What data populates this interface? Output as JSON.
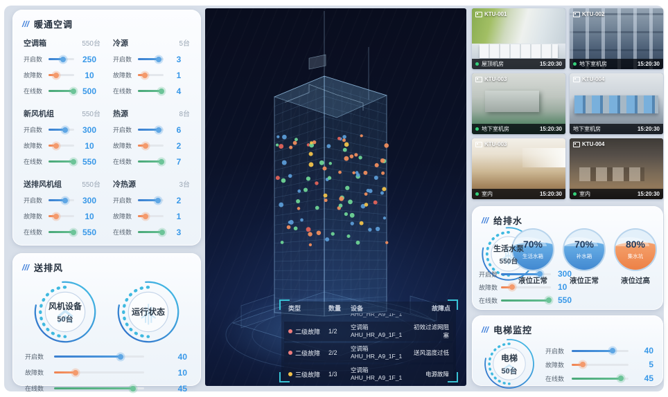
{
  "colors": {
    "accent_blue": "#3898e8",
    "accent_orange": "#f08a5c",
    "accent_green": "#5fb98a",
    "bracket_cyan": "#38c3d4",
    "online_green": "#35d07a",
    "ring_blue": "#2f6cc9",
    "ring_cyan": "#46c0e6"
  },
  "hvac": {
    "title": "暖通空调",
    "groups": [
      {
        "name": "空调箱",
        "total": "550台",
        "metrics": [
          {
            "label": "开启数",
            "value": "250",
            "pct": 58,
            "color": "blue"
          },
          {
            "label": "故障数",
            "value": "10",
            "pct": 30,
            "color": "orange"
          },
          {
            "label": "在线数",
            "value": "500",
            "pct": 96,
            "color": "green"
          }
        ]
      },
      {
        "name": "冷源",
        "total": "5台",
        "metrics": [
          {
            "label": "开启数",
            "value": "3",
            "pct": 80,
            "color": "blue"
          },
          {
            "label": "故障数",
            "value": "1",
            "pct": 28,
            "color": "orange"
          },
          {
            "label": "在线数",
            "value": "4",
            "pct": 92,
            "color": "green"
          }
        ]
      },
      {
        "name": "新风机组",
        "total": "550台",
        "metrics": [
          {
            "label": "开启数",
            "value": "300",
            "pct": 64,
            "color": "blue"
          },
          {
            "label": "故障数",
            "value": "10",
            "pct": 30,
            "color": "orange"
          },
          {
            "label": "在线数",
            "value": "550",
            "pct": 96,
            "color": "green"
          }
        ]
      },
      {
        "name": "热源",
        "total": "8台",
        "metrics": [
          {
            "label": "开启数",
            "value": "6",
            "pct": 80,
            "color": "blue"
          },
          {
            "label": "故障数",
            "value": "2",
            "pct": 30,
            "color": "orange"
          },
          {
            "label": "在线数",
            "value": "7",
            "pct": 92,
            "color": "green"
          }
        ]
      },
      {
        "name": "送排风机组",
        "total": "550台",
        "metrics": [
          {
            "label": "开启数",
            "value": "300",
            "pct": 64,
            "color": "blue"
          },
          {
            "label": "故障数",
            "value": "10",
            "pct": 30,
            "color": "orange"
          },
          {
            "label": "在线数",
            "value": "550",
            "pct": 96,
            "color": "green"
          }
        ]
      },
      {
        "name": "冷热源",
        "total": "3台",
        "metrics": [
          {
            "label": "开启数",
            "value": "2",
            "pct": 78,
            "color": "blue"
          },
          {
            "label": "故障数",
            "value": "1",
            "pct": 30,
            "color": "orange"
          },
          {
            "label": "在线数",
            "value": "3",
            "pct": 94,
            "color": "green"
          }
        ]
      }
    ]
  },
  "fan": {
    "title": "送排风",
    "gauges": [
      {
        "line1": "风机设备",
        "line2": "50台"
      },
      {
        "line1": "运行状态",
        "line2": ""
      }
    ],
    "metrics": [
      {
        "label": "开启数",
        "value": "40",
        "pct": 74,
        "color": "blue"
      },
      {
        "label": "故障数",
        "value": "10",
        "pct": 24,
        "color": "orange"
      },
      {
        "label": "在线数",
        "value": "45",
        "pct": 88,
        "color": "green"
      }
    ]
  },
  "cameras": {
    "tiles": [
      {
        "id": "KTU-001",
        "location": "屋顶机房",
        "time": "15:20:30",
        "online": true,
        "scene": "rooftop"
      },
      {
        "id": "KTU-002",
        "location": "地下室机房",
        "time": "15:20:30",
        "online": true,
        "scene": "pumps"
      },
      {
        "id": "KTU-003",
        "location": "地下室机房",
        "time": "15:20:30",
        "online": true,
        "scene": "plant"
      },
      {
        "id": "KTU-004",
        "location": "地下室机房",
        "time": "15:20:30",
        "online": false,
        "scene": "compressors"
      },
      {
        "id": "KTU-003",
        "location": "室内",
        "time": "15:20:30",
        "online": true,
        "scene": "office-bright"
      },
      {
        "id": "KTU-004",
        "location": "室内",
        "time": "15:20:30",
        "online": true,
        "scene": "office-dark"
      }
    ]
  },
  "water": {
    "title": "给排水",
    "gauge": {
      "line1": "生活水泵",
      "line2": "550台"
    },
    "tanks": [
      {
        "pct": "70%",
        "name": "生活水箱",
        "status": "液位正常",
        "theme": "blue"
      },
      {
        "pct": "70%",
        "name": "补水箱",
        "status": "液位正常",
        "theme": "blue"
      },
      {
        "pct": "80%",
        "name": "集水坑",
        "status": "液位过高",
        "theme": "orange"
      }
    ],
    "metrics": [
      {
        "label": "开启数",
        "value": "300",
        "pct": 78,
        "color": "blue"
      },
      {
        "label": "故障数",
        "value": "10",
        "pct": 22,
        "color": "orange"
      },
      {
        "label": "在线数",
        "value": "550",
        "pct": 96,
        "color": "green"
      }
    ]
  },
  "elevator": {
    "title": "电梯监控",
    "gauge": {
      "line1": "电梯",
      "line2": "50台"
    },
    "metrics": [
      {
        "label": "开启数",
        "value": "40",
        "pct": 72,
        "color": "blue"
      },
      {
        "label": "故障数",
        "value": "5",
        "pct": 20,
        "color": "orange"
      },
      {
        "label": "在线数",
        "value": "45",
        "pct": 86,
        "color": "green"
      }
    ]
  },
  "building": {
    "dots": {
      "seed": 11,
      "count": 92,
      "colors": [
        "#6ed395",
        "#6ed395",
        "#6ed395",
        "#5b9bd5",
        "#5b9bd5",
        "#5b9bd5",
        "#f0c24b",
        "#ef8d5d",
        "#ef8d5d",
        "#e2635a"
      ]
    },
    "table": {
      "headers": [
        "类型",
        "数量",
        "设备",
        "故障点"
      ],
      "partial_device": "AHU_HR_A9_1F_1",
      "rows": [
        {
          "level": "二级故障",
          "dot_class": "red",
          "count": "1/2",
          "device_type": "空调箱",
          "device_id": "AHU_HR_A9_1F_1",
          "fault": "初效过滤网阻塞"
        },
        {
          "level": "二级故障",
          "dot_class": "red",
          "count": "2/2",
          "device_type": "空调箱",
          "device_id": "AHU_HR_A9_1F_1",
          "fault": "送风温度过低"
        },
        {
          "level": "三级故障",
          "dot_class": "yellow",
          "count": "1/3",
          "device_type": "空调箱",
          "device_id": "AHU_HR_A9_1F_1",
          "fault": "电源故障"
        }
      ]
    }
  }
}
